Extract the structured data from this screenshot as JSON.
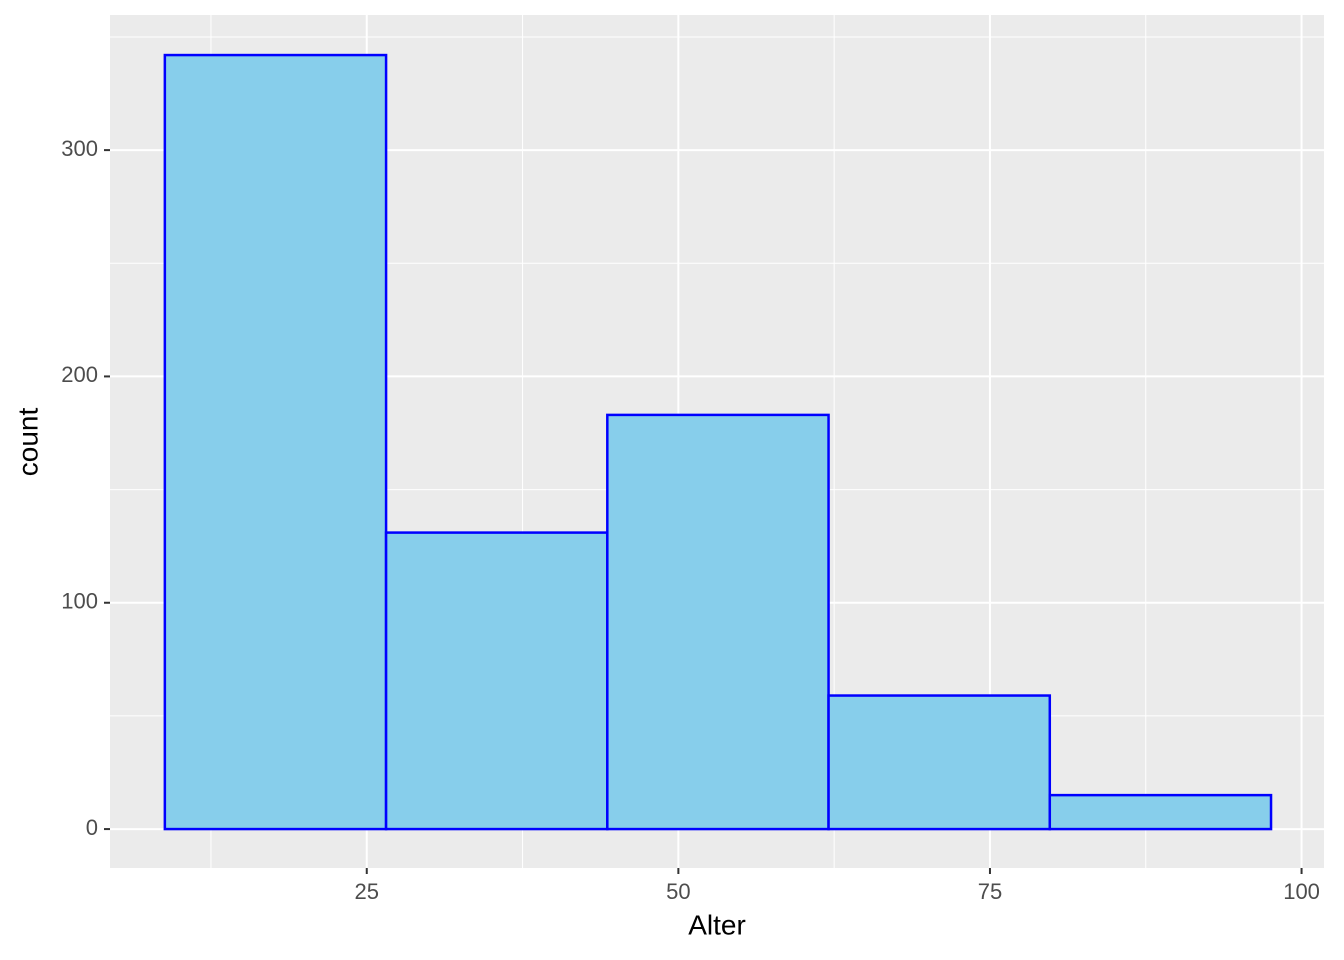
{
  "chart_data": {
    "type": "histogram",
    "x_label": "Alter",
    "y_label": "count",
    "bins": [
      8.8,
      26.55,
      44.3,
      62.05,
      79.8,
      97.55
    ],
    "counts": [
      342,
      131,
      183,
      59,
      15
    ],
    "color": "#87CEEB",
    "edgecolor": "#0000FF",
    "background": "#EBEBEB",
    "xlim": [
      4.4,
      101.8
    ],
    "ylim": [
      -17.2,
      359.7
    ],
    "xticks": [
      25,
      50,
      75,
      100
    ],
    "yticks": [
      0,
      100,
      200,
      300
    ],
    "grid": true
  }
}
